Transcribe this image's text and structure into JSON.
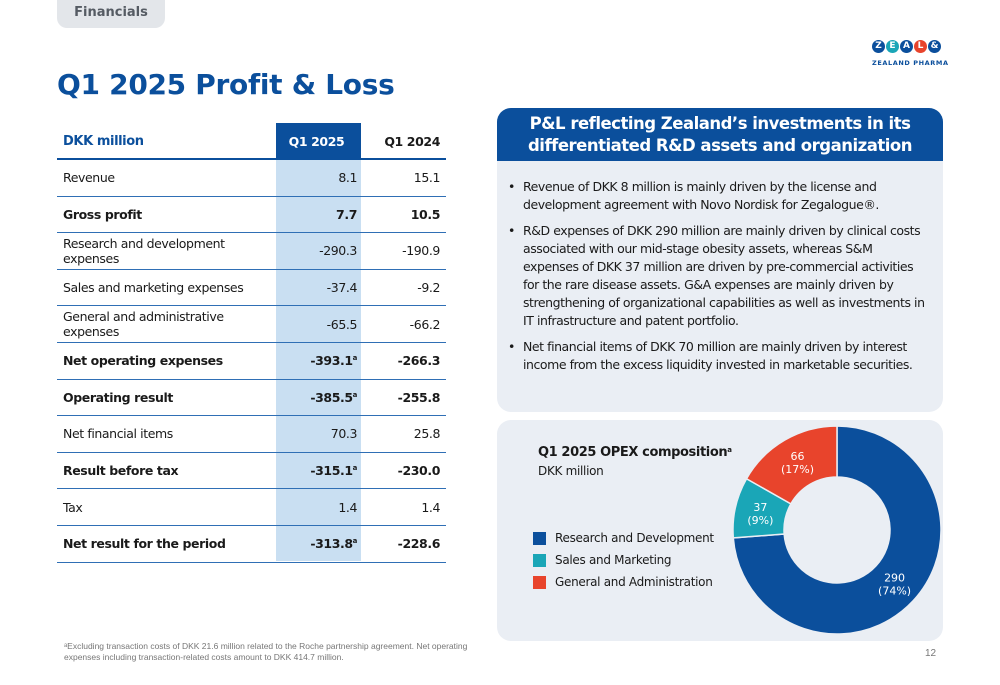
{
  "section_tab": "Financials",
  "page_title": "Q1 2025 Profit & Loss",
  "logo": {
    "letters": [
      "Z",
      "E",
      "A",
      "L",
      "&"
    ],
    "colors": [
      "#0b4f9c",
      "#1aa6b7",
      "#0b4f9c",
      "#e8442c",
      "#0b4f9c"
    ],
    "subtitle": "ZEALAND PHARMA"
  },
  "table": {
    "headers": {
      "label": "DKK million",
      "q1_2025": "Q1 2025",
      "q1_2024": "Q1 2024"
    },
    "rows": [
      {
        "label": "Revenue",
        "q1_2025": "8.1",
        "q1_2024": "15.1",
        "bold": false,
        "note": ""
      },
      {
        "label": "Gross profit",
        "q1_2025": "7.7",
        "q1_2024": "10.5",
        "bold": true,
        "note": ""
      },
      {
        "label": "Research and development expenses",
        "q1_2025": "-290.3",
        "q1_2024": "-190.9",
        "bold": false,
        "note": ""
      },
      {
        "label": "Sales and marketing expenses",
        "q1_2025": "-37.4",
        "q1_2024": "-9.2",
        "bold": false,
        "note": ""
      },
      {
        "label": "General and administrative expenses",
        "q1_2025": "-65.5",
        "q1_2024": "-66.2",
        "bold": false,
        "note": ""
      },
      {
        "label": "Net operating expenses",
        "q1_2025": "-393.1",
        "q1_2024": "-266.3",
        "bold": true,
        "note": "a"
      },
      {
        "label": "Operating result",
        "q1_2025": "-385.5",
        "q1_2024": "-255.8",
        "bold": true,
        "note": "a"
      },
      {
        "label": "Net financial items",
        "q1_2025": "70.3",
        "q1_2024": "25.8",
        "bold": false,
        "note": ""
      },
      {
        "label": "Result before tax",
        "q1_2025": "-315.1",
        "q1_2024": "-230.0",
        "bold": true,
        "note": "a"
      },
      {
        "label": "Tax",
        "q1_2025": "1.4",
        "q1_2024": "1.4",
        "bold": false,
        "note": ""
      },
      {
        "label": "Net result for the period",
        "q1_2025": "-313.8",
        "q1_2024": "-228.6",
        "bold": true,
        "note": "a"
      }
    ]
  },
  "footnote": "ᵃExcluding transaction costs of DKK 21.6 million related to the Roche partnership agreement. Net operating expenses including transaction-related costs amount to DKK 414.7 million.",
  "page_number": "12",
  "panel": {
    "header": "P&L reflecting Zealand’s investments in its differentiated R&D assets and organization",
    "bullets": [
      "Revenue of DKK 8 million is mainly driven by the license and development agreement with Novo Nordisk for Zegalogue®.",
      "R&D expenses of DKK 290 million are mainly driven by clinical costs associated with our mid-stage obesity assets, whereas S&M expenses of DKK 37 million are driven by pre-commercial activities for the rare disease assets. G&A expenses are mainly driven by strengthening of organizational capabilities as well as investments in IT infrastructure and patent portfolio.",
      "Net financial items of DKK 70 million are mainly driven by interest income from the excess liquidity invested in marketable securities."
    ]
  },
  "chart_data": {
    "type": "pie",
    "variant": "donut",
    "title": "Q1 2025 OPEX composition",
    "title_note": "a",
    "subtitle": "DKK million",
    "legend_position": "left",
    "series": [
      {
        "name": "Research and Development",
        "value": 290,
        "label": "290",
        "pct_label": "(74%)",
        "color": "#0b4f9c"
      },
      {
        "name": "Sales and Marketing",
        "value": 37,
        "label": "37",
        "pct_label": "(9%)",
        "color": "#1aa6b7"
      },
      {
        "name": "General and Administration",
        "value": 66,
        "label": "66",
        "pct_label": "(17%)",
        "color": "#e8442c"
      }
    ]
  }
}
